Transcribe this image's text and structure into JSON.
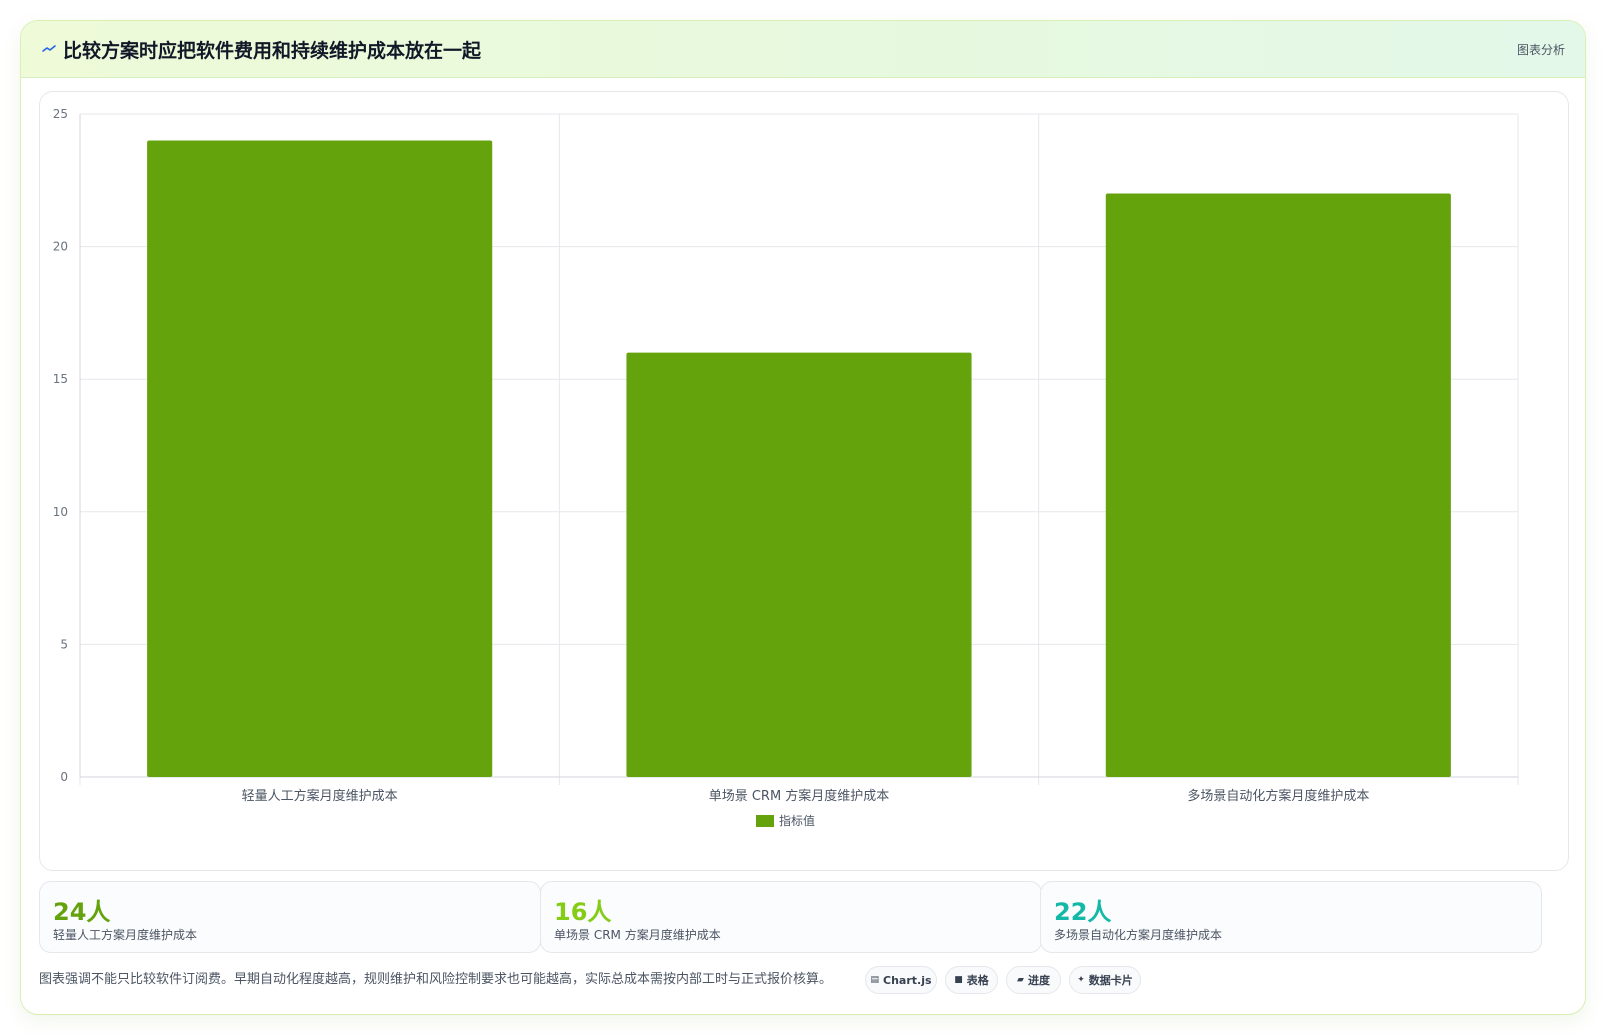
{
  "header": {
    "title": "比较方案时应把软件费用和持续维护成本放在一起",
    "tag": "图表分析",
    "icon": "trend-icon"
  },
  "chart_data": {
    "type": "bar",
    "categories": [
      "轻量人工方案月度维护成本",
      "单场景 CRM 方案月度维护成本",
      "多场景自动化方案月度维护成本"
    ],
    "series": [
      {
        "name": "指标值",
        "values": [
          24,
          16,
          22
        ],
        "color": "#65a30d"
      }
    ],
    "ylim": [
      0,
      25
    ],
    "yticks": [
      0,
      5,
      10,
      15,
      20,
      25
    ],
    "grid": true,
    "legend": "bottom-center"
  },
  "stats": [
    {
      "value": "24人",
      "label": "轻量人工方案月度维护成本",
      "color": "#65a30d"
    },
    {
      "value": "16人",
      "label": "单场景 CRM 方案月度维护成本",
      "color": "#84cc16"
    },
    {
      "value": "22人",
      "label": "多场景自动化方案月度维护成本",
      "color": "#14b8a6"
    }
  ],
  "footer": {
    "note": "图表强调不能只比较软件订阅费。早期自动化程度越高，规则维护和风险控制要求也可能越高，实际总成本需按内部工时与正式报价核算。",
    "chips": [
      {
        "glyph": "▤",
        "label": "Chart.js",
        "icon": "chart-icon"
      },
      {
        "glyph": "■",
        "label": "表格",
        "icon": "table-icon"
      },
      {
        "glyph": "▰",
        "label": "进度",
        "icon": "progress-icon"
      },
      {
        "glyph": "✦",
        "label": "数据卡片",
        "icon": "sparkle-icon"
      }
    ]
  }
}
